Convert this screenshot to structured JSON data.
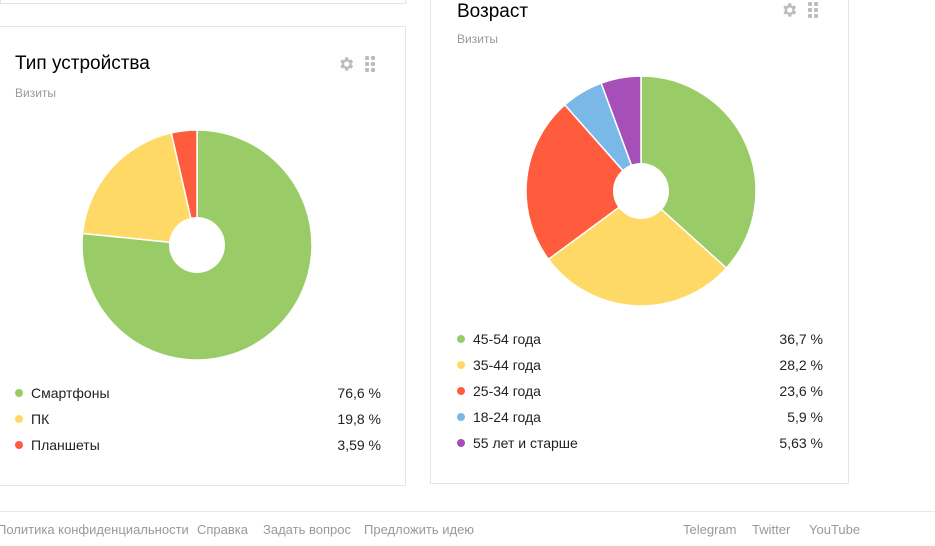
{
  "device_card": {
    "title": "Тип устройства",
    "subtitle": "Визиты",
    "tools": {
      "settings_icon": "gear-icon",
      "drag_icon": "grip-icon"
    }
  },
  "age_card": {
    "title": "Возраст",
    "subtitle": "Визиты",
    "tools": {
      "settings_icon": "gear-icon",
      "drag_icon": "grip-icon"
    }
  },
  "colors": {
    "green": "#99cc66",
    "yellow": "#ffd966",
    "red": "#ff5c3d",
    "blue": "#7ab8e8",
    "purple": "#a64fb8"
  },
  "chart_data": [
    {
      "type": "pie",
      "title": "Тип устройства",
      "subtitle": "Визиты",
      "series": [
        {
          "name": "Смартфоны",
          "value": 76.6,
          "label": "76,6 %",
          "color": "#99cc66"
        },
        {
          "name": "ПК",
          "value": 19.8,
          "label": "19,8 %",
          "color": "#ffd966"
        },
        {
          "name": "Планшеты",
          "value": 3.59,
          "label": "3,59 %",
          "color": "#ff5c3d"
        }
      ]
    },
    {
      "type": "pie",
      "title": "Возраст",
      "subtitle": "Визиты",
      "series": [
        {
          "name": "45-54 года",
          "value": 36.7,
          "label": "36,7 %",
          "color": "#99cc66"
        },
        {
          "name": "35-44 года",
          "value": 28.2,
          "label": "28,2 %",
          "color": "#ffd966"
        },
        {
          "name": "25-34 года",
          "value": 23.6,
          "label": "23,6 %",
          "color": "#ff5c3d"
        },
        {
          "name": "18-24 года",
          "value": 5.9,
          "label": "5,9 %",
          "color": "#7ab8e8"
        },
        {
          "name": "55 лет и старше",
          "value": 5.63,
          "label": "5,63 %",
          "color": "#a64fb8"
        }
      ]
    }
  ],
  "footer": {
    "links": [
      "Политика конфиденциальности",
      "Справка",
      "Задать вопрос",
      "Предложить идею"
    ],
    "social": [
      "Telegram",
      "Twitter",
      "YouTube"
    ]
  }
}
